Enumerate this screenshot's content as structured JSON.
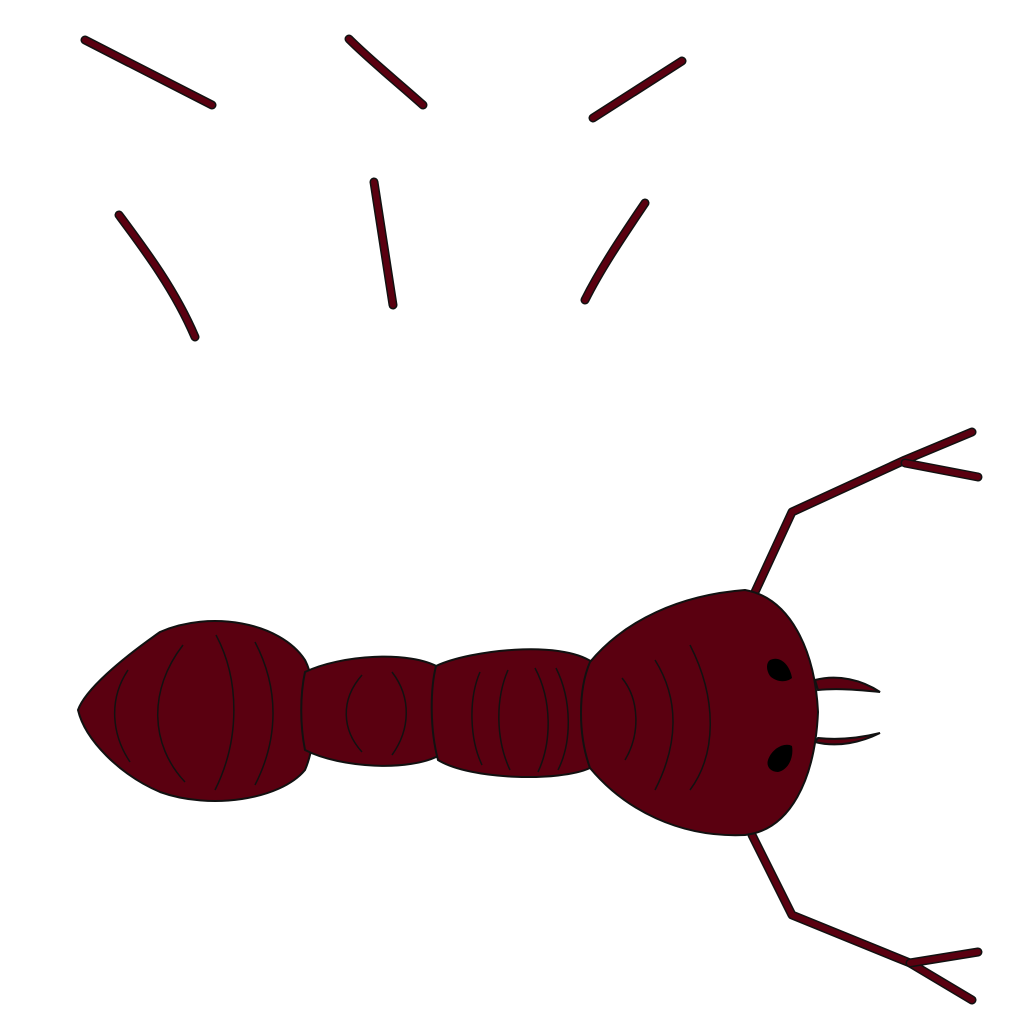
{
  "colors": {
    "background": "#ffffff",
    "body": "#5a0010",
    "outline": "#111111",
    "eye": "#000000"
  },
  "scene": {
    "subject": "ant-icon",
    "loose_legs": 6
  }
}
